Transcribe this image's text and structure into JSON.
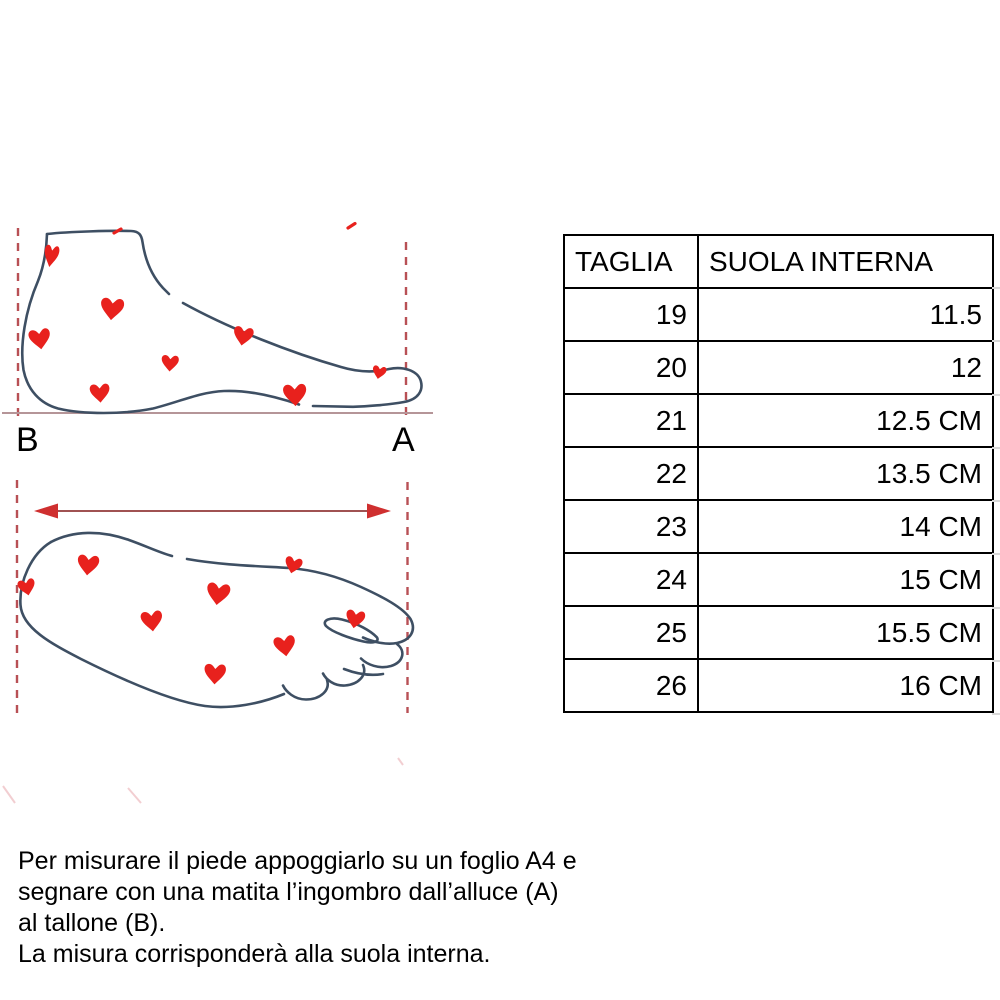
{
  "figures": {
    "side_view": {
      "label_heel": "B",
      "label_toe": "A"
    },
    "top_view": {
      "description": "foot outline with measurement arrow"
    }
  },
  "size_table": {
    "headers": [
      "TAGLIA",
      "SUOLA INTERNA"
    ],
    "rows": [
      [
        "19",
        "11.5"
      ],
      [
        "20",
        "12"
      ],
      [
        "21",
        "12.5 CM"
      ],
      [
        "22",
        "13.5 CM"
      ],
      [
        "23",
        "14 CM"
      ],
      [
        "24",
        "15 CM"
      ],
      [
        "25",
        "15.5 CM"
      ],
      [
        "26",
        "16 CM"
      ]
    ]
  },
  "instructions": {
    "lines": [
      "Per misurare il piede appoggiarlo su un foglio A4 e",
      "segnare con una matita l’ingombro dall’alluce (A)",
      "al tallone (B).",
      "La misura corrisponderà alla suola interna."
    ]
  },
  "colors": {
    "outline": "#3e4f63",
    "heart": "#e8211d",
    "dash": "#b85055",
    "baseline": "#b59598",
    "arrowLine": "#a05252",
    "arrowHead": "#cf2f2f"
  }
}
